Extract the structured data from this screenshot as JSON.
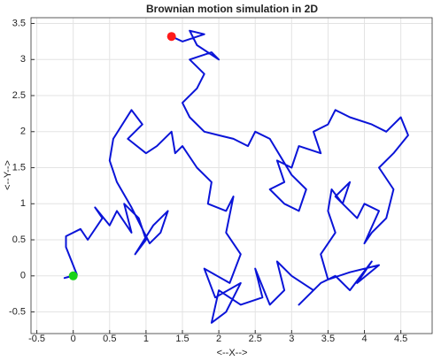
{
  "chart_data": {
    "type": "line",
    "title": "Brownian motion simulation in 2D",
    "xlabel": "<--X-->",
    "ylabel": "<--Y-->",
    "xlim": [
      -0.58,
      4.93
    ],
    "ylim": [
      -0.8,
      3.58
    ],
    "xticks": [
      -0.5,
      0,
      0.5,
      1,
      1.5,
      2,
      2.5,
      3,
      3.5,
      4,
      4.5
    ],
    "yticks": [
      -0.5,
      0,
      0.5,
      1,
      1.5,
      2,
      2.5,
      3,
      3.5
    ],
    "grid": true,
    "color": "#0a14d8",
    "x": [
      0,
      -0.12,
      0.05,
      -0.1,
      -0.1,
      0.1,
      0.2,
      0.4,
      0.3,
      0.5,
      0.6,
      0.8,
      0.7,
      0.9,
      1.0,
      0.85,
      1.1,
      1.3,
      1.2,
      1.05,
      0.8,
      0.6,
      0.5,
      0.55,
      0.8,
      0.95,
      0.75,
      1.0,
      1.15,
      1.35,
      1.4,
      1.5,
      1.7,
      1.9,
      1.85,
      2.1,
      2.2,
      2.1,
      2.3,
      2.15,
      1.8,
      1.95,
      2.3,
      2.1,
      1.9,
      2.0,
      2.3,
      2.6,
      2.5,
      2.7,
      2.9,
      2.8,
      3.0,
      3.3,
      3.1,
      3.4,
      3.6,
      3.8,
      4.1,
      3.9,
      4.2,
      3.8,
      3.5,
      3.4,
      3.6,
      3.5,
      3.55,
      3.7,
      3.8,
      3.6,
      3.9,
      4.0,
      4.2,
      4.0,
      4.1,
      4.3,
      4.4,
      4.2,
      4.4,
      4.6,
      4.5,
      4.3,
      4.1,
      3.8,
      3.6,
      3.5,
      3.3,
      3.4,
      3.1,
      3.0,
      2.8,
      2.9,
      2.7,
      2.9,
      3.1,
      3.2,
      3.0,
      2.7,
      2.5,
      2.4,
      2.2,
      2.0,
      1.8,
      1.6,
      1.5,
      1.7,
      1.8,
      1.6,
      1.9,
      2.0,
      1.7,
      1.6,
      1.8,
      1.5,
      1.35
    ],
    "y": [
      0,
      -0.03,
      0.02,
      0.4,
      0.55,
      0.65,
      0.5,
      0.8,
      0.95,
      0.7,
      0.9,
      0.6,
      1.0,
      0.8,
      0.5,
      0.3,
      0.7,
      0.9,
      0.6,
      0.45,
      0.95,
      1.3,
      1.6,
      1.9,
      2.3,
      2.1,
      1.9,
      1.7,
      1.8,
      2.0,
      1.7,
      1.8,
      1.5,
      1.3,
      1.0,
      0.9,
      1.1,
      0.6,
      0.3,
      -0.1,
      0.1,
      -0.3,
      -0.1,
      -0.5,
      -0.65,
      -0.2,
      -0.4,
      -0.3,
      0.1,
      -0.4,
      -0.2,
      0.2,
      0.0,
      -0.2,
      -0.4,
      -0.1,
      0.0,
      -0.2,
      0.2,
      -0.1,
      0.15,
      0.05,
      -0.05,
      0.3,
      0.6,
      0.9,
      1.2,
      1.0,
      1.3,
      1.1,
      0.8,
      1.0,
      0.9,
      0.45,
      0.6,
      0.8,
      1.2,
      1.5,
      1.7,
      1.95,
      2.2,
      2.0,
      2.1,
      2.2,
      2.3,
      2.1,
      2.0,
      1.7,
      1.8,
      1.5,
      1.6,
      1.3,
      1.2,
      1.0,
      0.9,
      1.2,
      1.4,
      1.9,
      2.0,
      1.8,
      1.9,
      1.95,
      2.0,
      2.2,
      2.4,
      2.6,
      2.8,
      3.0,
      3.1,
      3.0,
      3.2,
      3.4,
      3.35,
      3.25,
      3.32
    ],
    "markers": [
      {
        "x": 0,
        "y": 0,
        "color": "#19d219"
      },
      {
        "x": 1.35,
        "y": 3.32,
        "color": "#ff1a1a"
      }
    ]
  }
}
